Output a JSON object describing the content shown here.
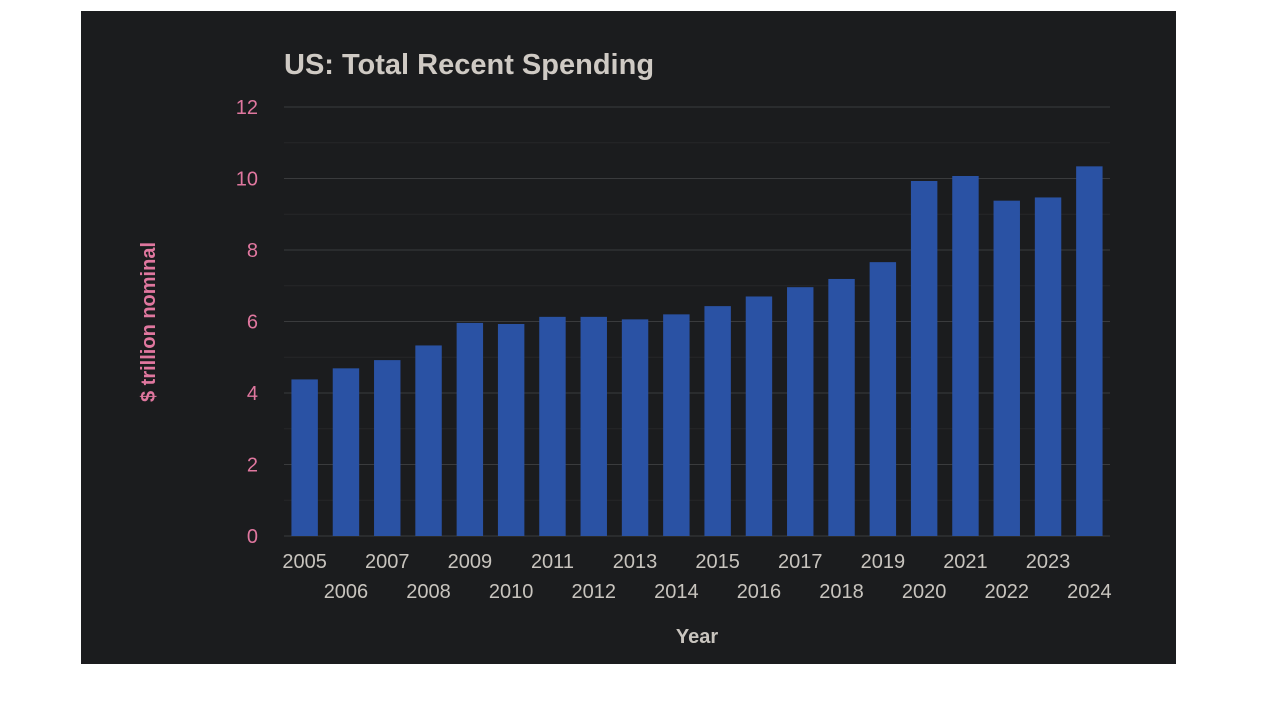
{
  "chart_data": {
    "type": "bar",
    "title": "US: Total Recent Spending",
    "xlabel": "Year",
    "ylabel": "$ trillion nominal",
    "ylim": [
      0,
      12
    ],
    "yticks": [
      0,
      2,
      4,
      6,
      8,
      10,
      12
    ],
    "grid": true,
    "categories": [
      "2005",
      "2006",
      "2007",
      "2008",
      "2009",
      "2010",
      "2011",
      "2012",
      "2013",
      "2014",
      "2015",
      "2016",
      "2017",
      "2018",
      "2019",
      "2020",
      "2021",
      "2022",
      "2023",
      "2024"
    ],
    "values": [
      4.38,
      4.69,
      4.92,
      5.33,
      5.96,
      5.93,
      6.13,
      6.13,
      6.06,
      6.2,
      6.43,
      6.7,
      6.96,
      7.19,
      7.66,
      9.93,
      10.07,
      9.38,
      9.47,
      10.34
    ],
    "colors": {
      "bar": "#2a52a4",
      "background": "#1b1c1e",
      "tick_label": "#e0779f",
      "title": "#cfcac4",
      "x_tick_label": "#c8c4be",
      "ylabel": "#e0779f"
    }
  }
}
